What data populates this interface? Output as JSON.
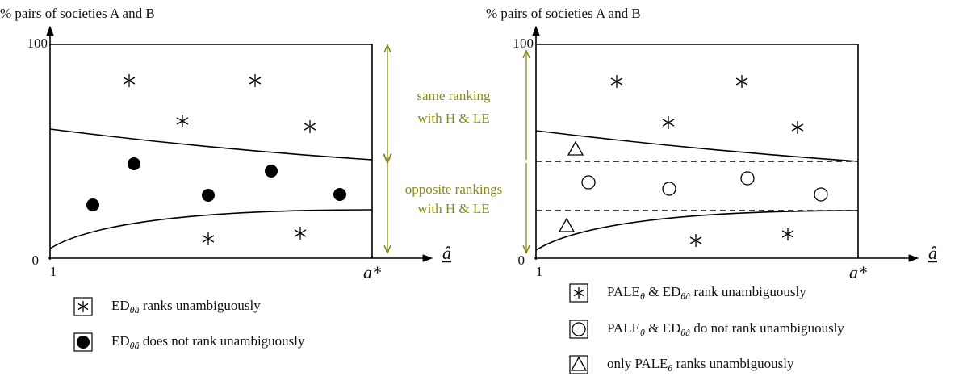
{
  "panels": [
    {
      "y_label": "% pairs of societies A and B",
      "y_top": "100",
      "y_bottom": "0",
      "x_start": "1",
      "x_end": "a*",
      "x_label": "â",
      "bands": [
        {
          "lines": [
            "same ranking",
            "with H & LE"
          ]
        },
        {
          "lines": [
            "opposite rankings",
            "with H & LE"
          ]
        }
      ],
      "legend": [
        {
          "parts": [
            {
              "text": "ED"
            },
            {
              "sub": "θâ"
            },
            {
              "text": " ranks unambiguously"
            }
          ]
        },
        {
          "parts": [
            {
              "text": "ED"
            },
            {
              "sub": "θâ"
            },
            {
              "text": " does not rank unambiguously"
            }
          ]
        }
      ]
    },
    {
      "y_label": "% pairs of societies A and B",
      "y_top": "100",
      "y_bottom": "0",
      "x_start": "1",
      "x_end": "a*",
      "x_label": "â",
      "legend": [
        {
          "parts": [
            {
              "text": "PALE"
            },
            {
              "sub": "θ"
            },
            {
              "text": " & ED"
            },
            {
              "sub": "θâ"
            },
            {
              "text": " rank unambiguously"
            }
          ]
        },
        {
          "parts": [
            {
              "text": "PALE"
            },
            {
              "sub": "θ"
            },
            {
              "text": " & ED"
            },
            {
              "sub": "θâ"
            },
            {
              "text": " do not rank unambiguously"
            }
          ]
        },
        {
          "parts": [
            {
              "text": "only PALE"
            },
            {
              "sub": "θ"
            },
            {
              "text": " ranks unambiguously"
            }
          ]
        }
      ]
    }
  ]
}
